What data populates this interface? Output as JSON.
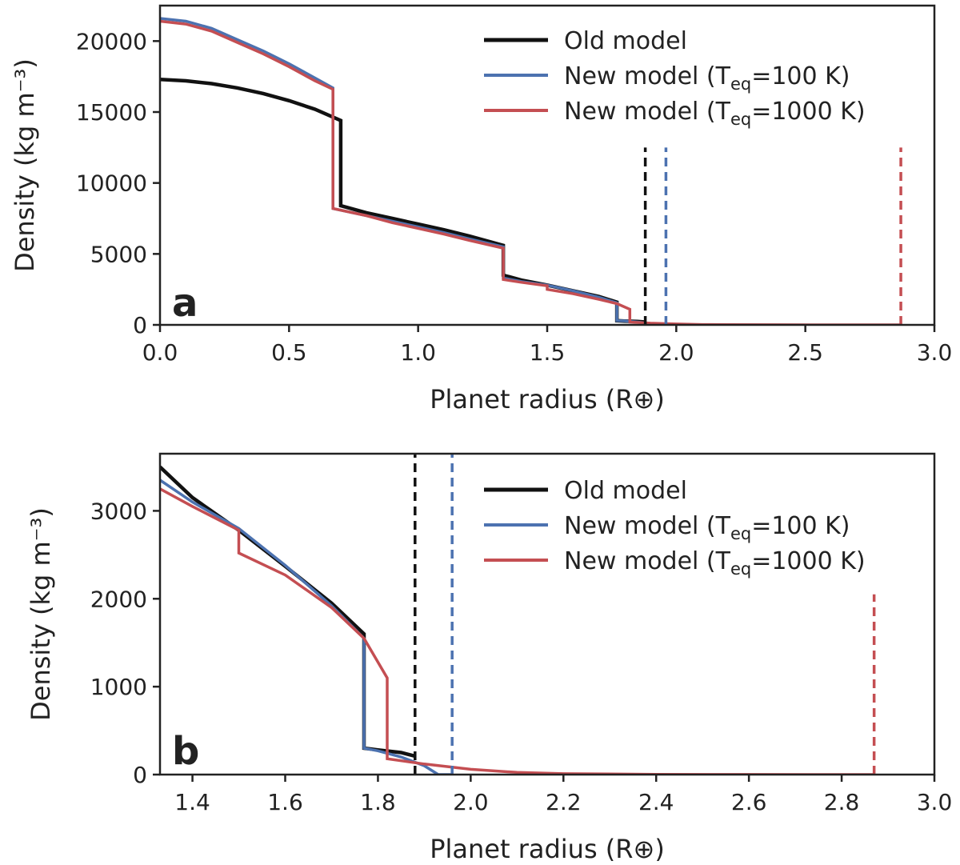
{
  "figure": {
    "panels": [
      "a",
      "b"
    ]
  },
  "colors": {
    "old": "#111111",
    "new100": "#4c72b0",
    "new1000": "#c44e52",
    "axis": "#222222"
  },
  "chart_data": [
    {
      "type": "line",
      "panel_label": "a",
      "xlabel": "Planet radius (R⊕)",
      "ylabel": "Density (kg m⁻³)",
      "xlim": [
        0.0,
        3.0
      ],
      "ylim": [
        0,
        22500
      ],
      "xticks": [
        0.0,
        0.5,
        1.0,
        1.5,
        2.0,
        2.5,
        3.0
      ],
      "xtick_labels": [
        "0.0",
        "0.5",
        "1.0",
        "1.5",
        "2.0",
        "2.5",
        "3.0"
      ],
      "yticks": [
        0,
        5000,
        10000,
        15000,
        20000
      ],
      "ytick_labels": [
        "0",
        "5000",
        "10000",
        "15000",
        "20000"
      ],
      "legend": "top-right",
      "legend_entries": [
        {
          "key": "old",
          "main": "Old model",
          "sub": "",
          "post": ""
        },
        {
          "key": "new100",
          "main": "New model (T",
          "sub": "eq",
          "post": "=100 K)"
        },
        {
          "key": "new1000",
          "main": "New model (T",
          "sub": "eq",
          "post": "=1000 K)"
        }
      ],
      "series": [
        {
          "key": "old",
          "name": "Old model",
          "x": [
            0,
            0.1,
            0.2,
            0.3,
            0.4,
            0.5,
            0.6,
            0.7,
            0.7,
            0.8,
            0.9,
            1.0,
            1.1,
            1.2,
            1.33,
            1.33,
            1.4,
            1.5,
            1.6,
            1.7,
            1.77,
            1.77,
            1.8,
            1.85,
            1.88
          ],
          "y": [
            17300,
            17200,
            17000,
            16700,
            16300,
            15800,
            15200,
            14400,
            8400,
            7900,
            7500,
            7100,
            6700,
            6250,
            5600,
            3500,
            3150,
            2800,
            2400,
            2000,
            1600,
            300,
            270,
            240,
            200
          ]
        },
        {
          "key": "new100",
          "name": "New model (Teq=100 K)",
          "x": [
            0,
            0.1,
            0.2,
            0.3,
            0.4,
            0.5,
            0.6,
            0.67,
            0.67,
            0.8,
            0.9,
            1.0,
            1.1,
            1.2,
            1.33,
            1.33,
            1.4,
            1.5,
            1.6,
            1.7,
            1.77,
            1.77,
            1.8,
            1.85,
            1.9,
            1.93,
            1.96
          ],
          "y": [
            21600,
            21400,
            20900,
            20100,
            19300,
            18400,
            17400,
            16700,
            8200,
            7700,
            7300,
            6900,
            6500,
            6050,
            5500,
            3300,
            3050,
            2800,
            2400,
            1950,
            1550,
            300,
            280,
            200,
            100,
            0,
            0
          ]
        },
        {
          "key": "new1000",
          "name": "New model (Teq=1000 K)",
          "x": [
            0,
            0.1,
            0.2,
            0.3,
            0.4,
            0.5,
            0.6,
            0.67,
            0.67,
            0.8,
            0.9,
            1.0,
            1.1,
            1.2,
            1.33,
            1.33,
            1.4,
            1.5,
            1.5,
            1.6,
            1.7,
            1.77,
            1.82,
            1.82,
            1.9,
            2.0,
            2.1,
            2.2,
            2.4,
            2.6,
            2.87
          ],
          "y": [
            21400,
            21200,
            20700,
            19900,
            19100,
            18200,
            17200,
            16600,
            8200,
            7700,
            7200,
            6800,
            6400,
            5950,
            5400,
            3200,
            3000,
            2750,
            2500,
            2200,
            1800,
            1500,
            1100,
            200,
            120,
            60,
            25,
            10,
            3,
            1,
            0
          ]
        }
      ],
      "vlines": [
        {
          "key": "old",
          "x": 1.88,
          "y_top": 12500
        },
        {
          "key": "new100",
          "x": 1.96,
          "y_top": 12500
        },
        {
          "key": "new1000",
          "x": 2.87,
          "y_top": 12500
        }
      ]
    },
    {
      "type": "line",
      "panel_label": "b",
      "xlabel": "Planet radius (R⊕)",
      "ylabel": "Density (kg m⁻³)",
      "xlim": [
        1.33,
        3.0
      ],
      "ylim": [
        0,
        3650
      ],
      "xticks": [
        1.4,
        1.6,
        1.8,
        2.0,
        2.2,
        2.4,
        2.6,
        2.8,
        3.0
      ],
      "xtick_labels": [
        "1.4",
        "1.6",
        "1.8",
        "2.0",
        "2.2",
        "2.4",
        "2.6",
        "2.8",
        "3.0"
      ],
      "yticks": [
        0,
        1000,
        2000,
        3000
      ],
      "ytick_labels": [
        "0",
        "1000",
        "2000",
        "3000"
      ],
      "legend": "top-right",
      "legend_entries": [
        {
          "key": "old",
          "main": "Old model",
          "sub": "",
          "post": ""
        },
        {
          "key": "new100",
          "main": "New model (T",
          "sub": "eq",
          "post": "=100 K)"
        },
        {
          "key": "new1000",
          "main": "New model (T",
          "sub": "eq",
          "post": "=1000 K)"
        }
      ],
      "series": [
        {
          "key": "old",
          "name": "Old model",
          "x": [
            1.33,
            1.4,
            1.5,
            1.6,
            1.7,
            1.77,
            1.77,
            1.8,
            1.85,
            1.88
          ],
          "y": [
            3500,
            3150,
            2780,
            2370,
            1950,
            1600,
            300,
            280,
            250,
            210
          ]
        },
        {
          "key": "new100",
          "name": "New model (Teq=100 K)",
          "x": [
            1.33,
            1.4,
            1.5,
            1.6,
            1.7,
            1.77,
            1.77,
            1.8,
            1.85,
            1.9,
            1.93,
            1.96
          ],
          "y": [
            3350,
            3100,
            2800,
            2380,
            1920,
            1550,
            300,
            270,
            200,
            100,
            0,
            0
          ]
        },
        {
          "key": "new1000",
          "name": "New model (Teq=1000 K)",
          "x": [
            1.33,
            1.4,
            1.5,
            1.5,
            1.6,
            1.7,
            1.77,
            1.82,
            1.82,
            1.9,
            2.0,
            2.1,
            2.2,
            2.4,
            2.6,
            2.87
          ],
          "y": [
            3250,
            3050,
            2780,
            2520,
            2270,
            1900,
            1550,
            1100,
            180,
            120,
            60,
            25,
            10,
            3,
            1,
            0
          ]
        }
      ],
      "vlines": [
        {
          "key": "old",
          "x": 1.88,
          "y_top": 3650
        },
        {
          "key": "new100",
          "x": 1.96,
          "y_top": 3650
        },
        {
          "key": "new1000",
          "x": 2.87,
          "y_top": 2050
        }
      ]
    }
  ]
}
